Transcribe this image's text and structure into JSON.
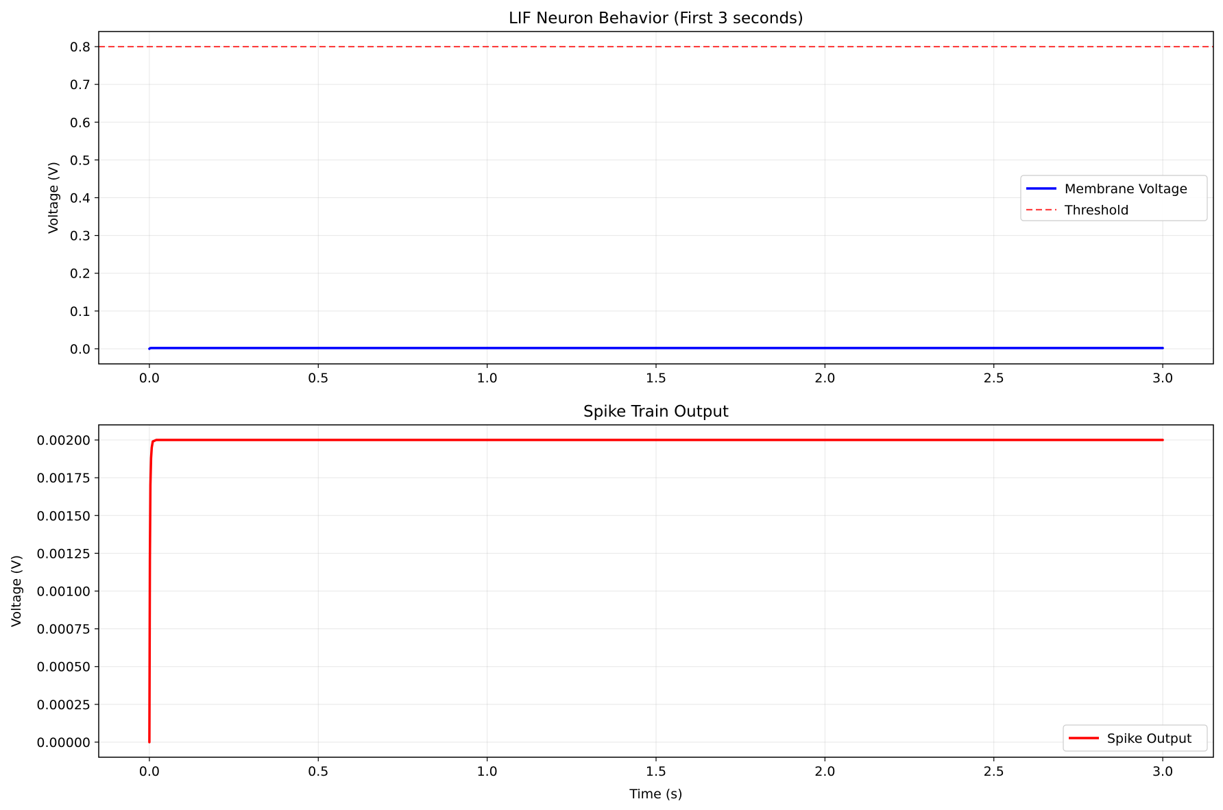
{
  "chart_data": [
    {
      "type": "line",
      "title": "LIF Neuron Behavior (First 3 seconds)",
      "xlabel": "",
      "ylabel": "Voltage (V)",
      "xlim": [
        -0.15,
        3.15
      ],
      "ylim": [
        -0.04,
        0.84
      ],
      "xticks": [
        0.0,
        0.5,
        1.0,
        1.5,
        2.0,
        2.5,
        3.0
      ],
      "xtick_labels": [
        "0.0",
        "0.5",
        "1.0",
        "1.5",
        "2.0",
        "2.5",
        "3.0"
      ],
      "yticks": [
        0.0,
        0.1,
        0.2,
        0.3,
        0.4,
        0.5,
        0.6,
        0.7,
        0.8
      ],
      "ytick_labels": [
        "0.0",
        "0.1",
        "0.2",
        "0.3",
        "0.4",
        "0.5",
        "0.6",
        "0.7",
        "0.8"
      ],
      "grid": true,
      "legend_position": "center-right",
      "series": [
        {
          "name": "Membrane Voltage",
          "color": "#0000ff",
          "style": "solid",
          "x": [
            0.0,
            0.002,
            0.005,
            0.01,
            0.02,
            3.0
          ],
          "y": [
            0.0,
            0.0015,
            0.0019,
            0.002,
            0.002,
            0.002
          ]
        }
      ],
      "hlines": [
        {
          "name": "Threshold",
          "y": 0.8,
          "color": "#ff0000",
          "style": "dashed"
        }
      ]
    },
    {
      "type": "line",
      "title": "Spike Train Output",
      "xlabel": "Time (s)",
      "ylabel": "Voltage (V)",
      "xlim": [
        -0.15,
        3.15
      ],
      "ylim": [
        -0.0001,
        0.0021
      ],
      "xticks": [
        0.0,
        0.5,
        1.0,
        1.5,
        2.0,
        2.5,
        3.0
      ],
      "xtick_labels": [
        "0.0",
        "0.5",
        "1.0",
        "1.5",
        "2.0",
        "2.5",
        "3.0"
      ],
      "yticks": [
        0.0,
        0.00025,
        0.0005,
        0.00075,
        0.001,
        0.00125,
        0.0015,
        0.00175,
        0.002
      ],
      "ytick_labels": [
        "0.00000",
        "0.00025",
        "0.00050",
        "0.00075",
        "0.00100",
        "0.00125",
        "0.00150",
        "0.00175",
        "0.00200"
      ],
      "grid": true,
      "legend_position": "lower-right",
      "series": [
        {
          "name": "Spike Output",
          "color": "#ff0000",
          "style": "solid",
          "x": [
            0.0,
            0.0015,
            0.003,
            0.005,
            0.007,
            0.01,
            0.02,
            3.0
          ],
          "y": [
            0.0,
            0.0012,
            0.0017,
            0.00188,
            0.00195,
            0.00199,
            0.002,
            0.002
          ]
        }
      ]
    }
  ]
}
